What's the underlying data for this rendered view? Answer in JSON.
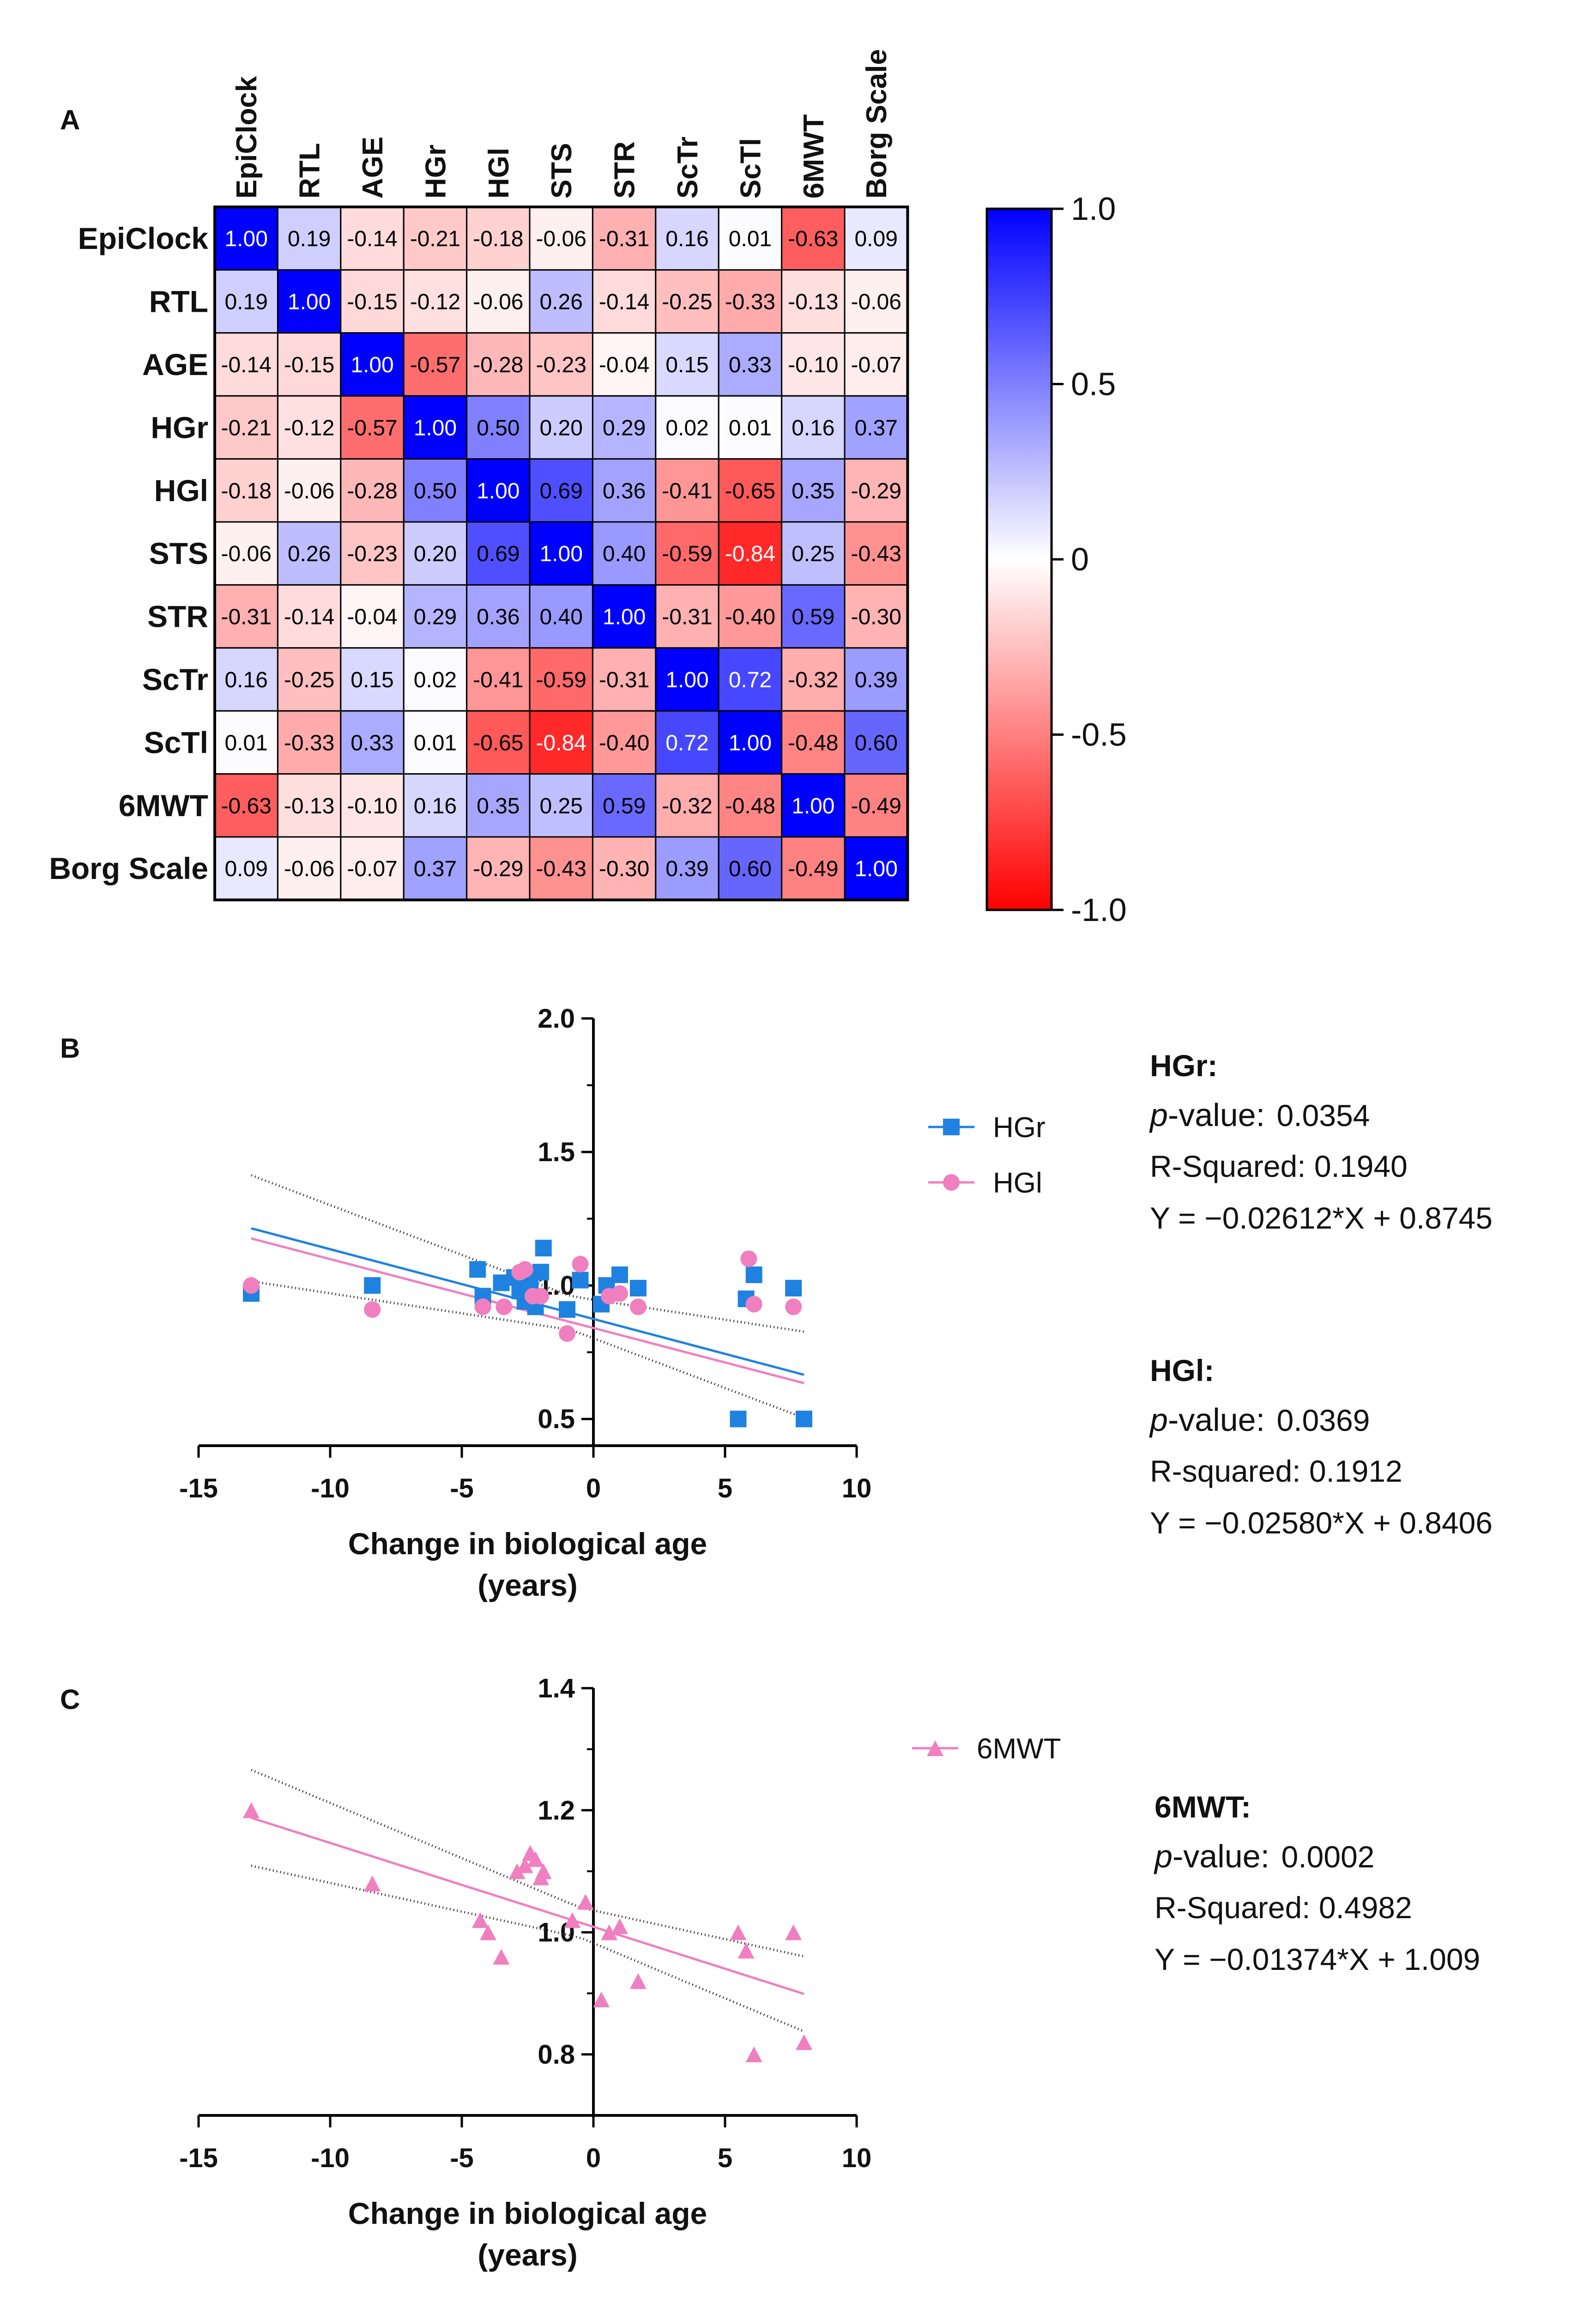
{
  "panels": {
    "a": "A",
    "b": "B",
    "c": "C"
  },
  "heatmap": {
    "labels": [
      "EpiClock",
      "RTL",
      "AGE",
      "HGr",
      "HGl",
      "STS",
      "STR",
      "ScTr",
      "ScTl",
      "6MWT",
      "Borg Scale"
    ],
    "matrix": [
      [
        "1.00",
        "0.19",
        "-0.14",
        "-0.21",
        "-0.18",
        "-0.06",
        "-0.31",
        "0.16",
        "0.01",
        "-0.63",
        "0.09"
      ],
      [
        "0.19",
        "1.00",
        "-0.15",
        "-0.12",
        "-0.06",
        "0.26",
        "-0.14",
        "-0.25",
        "-0.33",
        "-0.13",
        "-0.06"
      ],
      [
        "-0.14",
        "-0.15",
        "1.00",
        "-0.57",
        "-0.28",
        "-0.23",
        "-0.04",
        "0.15",
        "0.33",
        "-0.10",
        "-0.07"
      ],
      [
        "-0.21",
        "-0.12",
        "-0.57",
        "1.00",
        "0.50",
        "0.20",
        "0.29",
        "0.02",
        "0.01",
        "0.16",
        "0.37"
      ],
      [
        "-0.18",
        "-0.06",
        "-0.28",
        "0.50",
        "1.00",
        "0.69",
        "0.36",
        "-0.41",
        "-0.65",
        "0.35",
        "-0.29"
      ],
      [
        "-0.06",
        "0.26",
        "-0.23",
        "0.20",
        "0.69",
        "1.00",
        "0.40",
        "-0.59",
        "-0.84",
        "0.25",
        "-0.43"
      ],
      [
        "-0.31",
        "-0.14",
        "-0.04",
        "0.29",
        "0.36",
        "0.40",
        "1.00",
        "-0.31",
        "-0.40",
        "0.59",
        "-0.30"
      ],
      [
        "0.16",
        "-0.25",
        "0.15",
        "0.02",
        "-0.41",
        "-0.59",
        "-0.31",
        "1.00",
        "0.72",
        "-0.32",
        "0.39"
      ],
      [
        "0.01",
        "-0.33",
        "0.33",
        "0.01",
        "-0.65",
        "-0.84",
        "-0.40",
        "0.72",
        "1.00",
        "-0.48",
        "0.60"
      ],
      [
        "-0.63",
        "-0.13",
        "-0.10",
        "0.16",
        "0.35",
        "0.25",
        "0.59",
        "-0.32",
        "-0.48",
        "1.00",
        "-0.49"
      ],
      [
        "0.09",
        "-0.06",
        "-0.07",
        "0.37",
        "-0.29",
        "-0.43",
        "-0.30",
        "0.39",
        "0.60",
        "-0.49",
        "1.00"
      ]
    ],
    "colorbar": {
      "min": -1,
      "max": 1,
      "ticks": [
        "1.0",
        "0.5",
        "0",
        "-0.5",
        "-1.0"
      ],
      "tick_values": [
        1,
        0.5,
        0,
        -0.5,
        -1
      ]
    },
    "colors": {
      "positive": "#0000ff",
      "negative": "#ff0000",
      "neutral": "#ffffff"
    }
  },
  "chart_data": [
    {
      "type": "heatmap",
      "rows": [
        "EpiClock",
        "RTL",
        "AGE",
        "HGr",
        "HGl",
        "STS",
        "STR",
        "ScTr",
        "ScTl",
        "6MWT",
        "Borg Scale"
      ],
      "columns": [
        "EpiClock",
        "RTL",
        "AGE",
        "HGr",
        "HGl",
        "STS",
        "STR",
        "ScTr",
        "ScTl",
        "6MWT",
        "Borg Scale"
      ],
      "zlim": [
        -1,
        1
      ]
    },
    {
      "type": "scatter",
      "xlabel": "Change in biological age (years)",
      "ylabel": "",
      "xlim": [
        -15,
        10
      ],
      "ylim": [
        0.4,
        2.0
      ],
      "xticks": [
        "-15",
        "-10",
        "-5",
        "0",
        "5",
        "10"
      ],
      "yticks": [
        "2.0",
        "1.5",
        "1.0",
        "0.5"
      ],
      "series": [
        {
          "name": "HGr",
          "color": "#1f82e0",
          "marker": "square",
          "x": [
            -13,
            -8.4,
            -4.4,
            -4.2,
            -3.5,
            -3.0,
            -2.8,
            -2.6,
            -2.5,
            -2.4,
            -2.2,
            -2.0,
            -1.9,
            -1.0,
            -0.5,
            0.3,
            0.5,
            1.0,
            1.7,
            5.5,
            5.8,
            6.1,
            7.6,
            8.0
          ],
          "y": [
            0.97,
            1.0,
            1.06,
            0.96,
            1.01,
            1.03,
            0.98,
            0.94,
            1.04,
            1.0,
            0.92,
            1.05,
            1.14,
            0.91,
            1.02,
            0.93,
            1.0,
            1.04,
            0.99,
            0.5,
            0.95,
            1.04,
            0.99,
            0.5
          ]
        },
        {
          "name": "HGl",
          "color": "#f07fbf",
          "marker": "circle",
          "x": [
            -13,
            -8.4,
            -4.2,
            -3.4,
            -2.8,
            -2.6,
            -2.3,
            -2.0,
            -1.0,
            -0.5,
            0.6,
            1.0,
            1.7,
            5.9,
            6.1,
            7.6
          ],
          "y": [
            1.0,
            0.91,
            0.92,
            0.92,
            1.05,
            1.06,
            0.96,
            0.96,
            0.82,
            1.08,
            0.96,
            0.97,
            0.92,
            1.1,
            0.93,
            0.92
          ]
        }
      ],
      "fits": [
        {
          "series": "HGr",
          "slope": -0.02612,
          "intercept": 0.8745
        },
        {
          "series": "HGl",
          "slope": -0.0258,
          "intercept": 0.8406
        }
      ]
    },
    {
      "type": "scatter",
      "xlabel": "Change in biological age (years)",
      "ylabel": "",
      "xlim": [
        -15,
        10
      ],
      "ylim": [
        0.7,
        1.4
      ],
      "xticks": [
        "-15",
        "-10",
        "-5",
        "0",
        "5",
        "10"
      ],
      "yticks": [
        "1.4",
        "1.2",
        "1.0",
        "0.8"
      ],
      "series": [
        {
          "name": "6MWT",
          "color": "#f07fbf",
          "marker": "triangle",
          "x": [
            -13,
            -8.4,
            -4.3,
            -4.0,
            -3.5,
            -2.9,
            -2.6,
            -2.4,
            -2.2,
            -2.0,
            -1.9,
            -0.8,
            -0.3,
            0.3,
            0.6,
            1.0,
            1.7,
            5.5,
            5.8,
            6.1,
            7.6,
            8.0
          ],
          "y": [
            1.2,
            1.08,
            1.02,
            1.0,
            0.96,
            1.1,
            1.11,
            1.13,
            1.12,
            1.09,
            1.1,
            1.02,
            1.05,
            0.89,
            1.0,
            1.01,
            0.92,
            1.0,
            0.97,
            0.8,
            1.0,
            0.82
          ]
        }
      ],
      "fits": [
        {
          "series": "6MWT",
          "slope": -0.01374,
          "intercept": 1.009
        }
      ]
    }
  ],
  "panel_b": {
    "xlabel_line1": "Change in biological age",
    "xlabel_line2": "(years)",
    "legend": [
      "HGr",
      "HGl"
    ],
    "stats": [
      {
        "head": "HGr:",
        "p_key": "p",
        "p_rest": "-value: ",
        "p_val": "0.0354",
        "r2": "R-Squared: 0.1940",
        "eq": "Y = −0.02612*X + 0.8745"
      },
      {
        "head": "HGl:",
        "p_key": "p",
        "p_rest": "-value: ",
        "p_val": "0.0369",
        "r2": "R-squared: 0.1912",
        "eq": "Y = −0.02580*X + 0.8406"
      }
    ]
  },
  "panel_c": {
    "xlabel_line1": "Change in biological age",
    "xlabel_line2": "(years)",
    "legend": [
      "6MWT"
    ],
    "stats": [
      {
        "head": "6MWT:",
        "p_key": "p",
        "p_rest": "-value: ",
        "p_val": "0.0002",
        "r2": "R-Squared: 0.4982",
        "eq": "Y = −0.01374*X + 1.009"
      }
    ]
  }
}
